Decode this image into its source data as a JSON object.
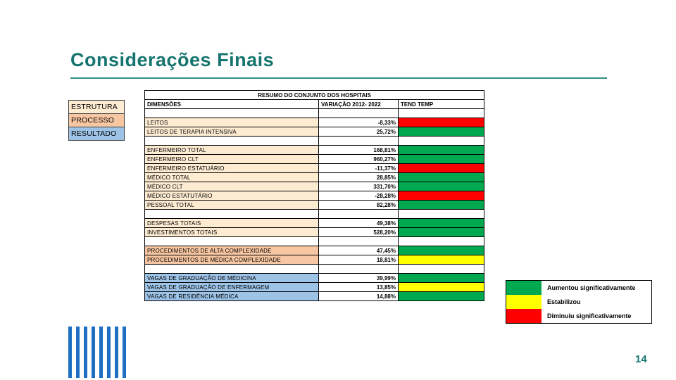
{
  "slide": {
    "title": "Considerações Finais",
    "page_number": "14",
    "accent_color": "#15756e",
    "rule_color": "#2e8f88"
  },
  "left_legend": {
    "items": [
      {
        "label": "ESTRUTURA",
        "color": "#fdebd2"
      },
      {
        "label": "PROCESSO",
        "color": "#f7c6a2"
      },
      {
        "label": "RESULTADO",
        "color": "#9dc3e6"
      }
    ]
  },
  "category_colors": {
    "estrutura": "#fdebd2",
    "processo": "#f7c6a2",
    "resultado": "#9dc3e6"
  },
  "trend_colors": {
    "green": "#00a94f",
    "yellow": "#ffff00",
    "red": "#ff0000"
  },
  "table": {
    "title": "RESUMO DO CONJUNTO DOS HOSPITAIS",
    "columns": [
      "DIMENSÕES",
      "VARIAÇÃO 2012- 2022",
      "TEND TEMP"
    ],
    "rows": [
      {
        "label": "",
        "value": "",
        "trend": null,
        "category": null
      },
      {
        "label": "LEITOS",
        "value": "-8,33%",
        "trend": "red",
        "category": "estrutura"
      },
      {
        "label": "LEITOS DE TERAPIA INTENSIVA",
        "value": "25,72%",
        "trend": "green",
        "category": "estrutura"
      },
      {
        "label": "",
        "value": "",
        "trend": null,
        "category": null
      },
      {
        "label": "ENFERMEIRO TOTAL",
        "value": "168,81%",
        "trend": "green",
        "category": "estrutura"
      },
      {
        "label": "ENFERMEIRO CLT",
        "value": "960,27%",
        "trend": "green",
        "category": "estrutura"
      },
      {
        "label": "ENFERMEIRO ESTATUÁRIO",
        "value": "-11,37%",
        "trend": "red",
        "category": "estrutura"
      },
      {
        "label": "MÉDICO TOTAL",
        "value": "28,85%",
        "trend": "green",
        "category": "estrutura"
      },
      {
        "label": "MÉDICO CLT",
        "value": "331,70%",
        "trend": "green",
        "category": "estrutura"
      },
      {
        "label": "MÉDICO ESTATUTÁRIO",
        "value": "-28,28%",
        "trend": "red",
        "category": "estrutura"
      },
      {
        "label": "PESSOAL TOTAL",
        "value": "82,28%",
        "trend": "green",
        "category": "estrutura"
      },
      {
        "label": "",
        "value": "",
        "trend": null,
        "category": null
      },
      {
        "label": "DESPESAS TOTAIS",
        "value": "49,38%",
        "trend": "green",
        "category": "estrutura"
      },
      {
        "label": "INVESTIMENTOS TOTAIS",
        "value": "528,20%",
        "trend": "green",
        "category": "estrutura"
      },
      {
        "label": "",
        "value": "",
        "trend": null,
        "category": null
      },
      {
        "label": "PROCEDIMENTOS DE ALTA COMPLEXIDADE",
        "value": "47,45%",
        "trend": "green",
        "category": "processo"
      },
      {
        "label": "PROCEDIMENTOS DE MÉDICA COMPLEXIDADE",
        "value": "18,81%",
        "trend": "yellow",
        "category": "processo"
      },
      {
        "label": "",
        "value": "",
        "trend": null,
        "category": null
      },
      {
        "label": "VAGAS DE GRADUAÇÃO DE MÉDICINA",
        "value": "39,99%",
        "trend": "green",
        "category": "resultado"
      },
      {
        "label": "VAGAS DE GRADUAÇÃO DE ENFERMAGEM",
        "value": "13,85%",
        "trend": "yellow",
        "category": "resultado"
      },
      {
        "label": "VAGAS DE RESIDÊNCIA MÉDICA",
        "value": "14,88%",
        "trend": "green",
        "category": "resultado"
      }
    ]
  },
  "trend_legend": {
    "items": [
      {
        "label": "Aumentou significativamente",
        "key": "green",
        "color": "#00a94f"
      },
      {
        "label": "Estabilizou",
        "key": "yellow",
        "color": "#ffff00"
      },
      {
        "label": "Diminuiu significativamente",
        "key": "red",
        "color": "#ff0000"
      }
    ]
  },
  "decoration": {
    "stripe_color": "#1e6fc4",
    "stripe_count": 8
  }
}
